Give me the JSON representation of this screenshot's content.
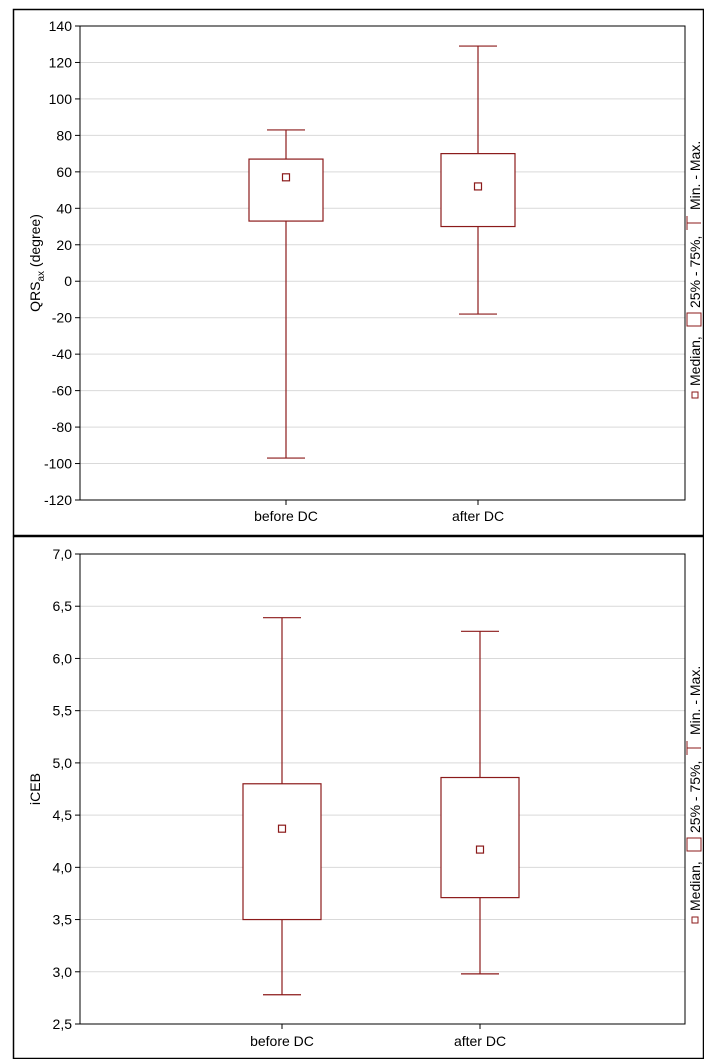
{
  "chart_data": [
    {
      "type": "box",
      "xlabel": "",
      "ylabel": "QRS",
      "ylabel_sub": "ax",
      "ylabel_suffix": " (degree)",
      "ylim": [
        -120,
        140
      ],
      "yticks": [
        140,
        120,
        100,
        80,
        60,
        40,
        20,
        0,
        -20,
        -40,
        -60,
        -80,
        -100,
        -120
      ],
      "ytick_labels": [
        "140",
        "120",
        "100",
        "80",
        "60",
        "40",
        "20",
        "0",
        "-20",
        "-40",
        "-60",
        "-80",
        "-100",
        "-120"
      ],
      "categories": [
        "before DC",
        "after DC"
      ],
      "boxes": [
        {
          "category": "before DC",
          "min": -97,
          "q1": 33,
          "median": 57,
          "q3": 67,
          "max": 83
        },
        {
          "category": "after DC",
          "min": -18,
          "q1": 30,
          "median": 52,
          "q3": 70,
          "max": 129
        }
      ],
      "grid": true,
      "legend": {
        "median": "Median,",
        "box": "25% - 75%,",
        "whisker": "Min. - Max."
      },
      "color": "#8b1a1a"
    },
    {
      "type": "box",
      "xlabel": "",
      "ylabel": "iCEB",
      "ylabel_sub": "",
      "ylabel_suffix": "",
      "ylim": [
        2.5,
        7.0
      ],
      "yticks": [
        7.0,
        6.5,
        6.0,
        5.5,
        5.0,
        4.5,
        4.0,
        3.5,
        3.0,
        2.5
      ],
      "ytick_labels": [
        "7,0",
        "6,5",
        "6,0",
        "5,5",
        "5,0",
        "4,5",
        "4,0",
        "3,5",
        "3,0",
        "2,5"
      ],
      "categories": [
        "before DC",
        "after DC"
      ],
      "boxes": [
        {
          "category": "before DC",
          "min": 2.78,
          "q1": 3.5,
          "median": 4.37,
          "q3": 4.8,
          "max": 6.39
        },
        {
          "category": "after DC",
          "min": 2.98,
          "q1": 3.71,
          "median": 4.17,
          "q3": 4.86,
          "max": 6.26
        }
      ],
      "grid": true,
      "legend": {
        "median": "Median,",
        "box": "25% - 75%,",
        "whisker": "Min. - Max."
      },
      "color": "#8b1a1a"
    }
  ]
}
